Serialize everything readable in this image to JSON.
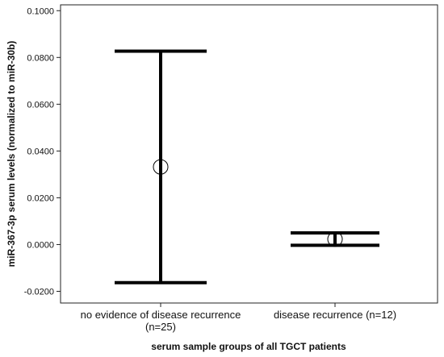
{
  "chart_data": {
    "type": "errorbar",
    "title": "",
    "xlabel": "serum sample groups of all TGCT patients",
    "ylabel": "miR-367-3p serum levels (normalized to miR-30b)",
    "ylim": [
      -0.025,
      0.1025
    ],
    "yticks": [
      "-0.0200",
      "0.0000",
      "0.0200",
      "0.0400",
      "0.0600",
      "0.0800",
      "0.1000"
    ],
    "ytick_values": [
      -0.02,
      0,
      0.02,
      0.04,
      0.06,
      0.08,
      0.1
    ],
    "categories": [
      {
        "lines": [
          "no evidence of disease recurrence",
          "(n=25)"
        ]
      },
      {
        "lines": [
          "disease recurrence (n=12)"
        ]
      }
    ],
    "points": [
      {
        "mean": 0.0332,
        "lower": -0.0163,
        "upper": 0.0827
      },
      {
        "mean": 0.0023,
        "lower": -0.0003,
        "upper": 0.005
      }
    ],
    "grid": false,
    "marker": "open-circle"
  }
}
